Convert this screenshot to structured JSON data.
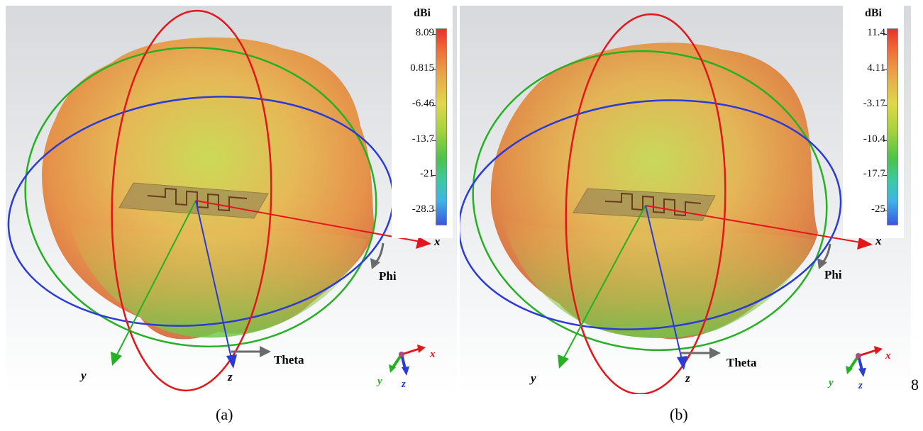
{
  "panels": [
    {
      "caption": "(a)",
      "colorbar": {
        "unit": "dBi",
        "ticks": [
          "8.09",
          "0.815",
          "-6.46",
          "-13.7",
          "-21",
          "-28.3"
        ]
      },
      "axes": {
        "x": "x",
        "y": "y",
        "z": "z"
      },
      "arcs": {
        "phi": "Phi",
        "theta": "Theta"
      },
      "triad": {
        "x": "x",
        "y": "y",
        "z": "z"
      }
    },
    {
      "caption": "(b)",
      "colorbar": {
        "unit": "dBi",
        "ticks": [
          "11.4",
          "4.11",
          "-3.17",
          "-10.4",
          "-17.7",
          "-25"
        ]
      },
      "axes": {
        "x": "x",
        "y": "y",
        "z": "z"
      },
      "arcs": {
        "phi": "Phi",
        "theta": "Theta"
      },
      "triad": {
        "x": "x",
        "y": "y",
        "z": "z"
      }
    }
  ],
  "stray_label": "8",
  "colors": {
    "x_axis": "#e3161b",
    "y_axis": "#26b024",
    "z_axis": "#2a3bd6",
    "phi_theta_arrow": "#6b6b6b",
    "pattern_hot": "#e0823a",
    "pattern_cool": "#8fd03c"
  }
}
